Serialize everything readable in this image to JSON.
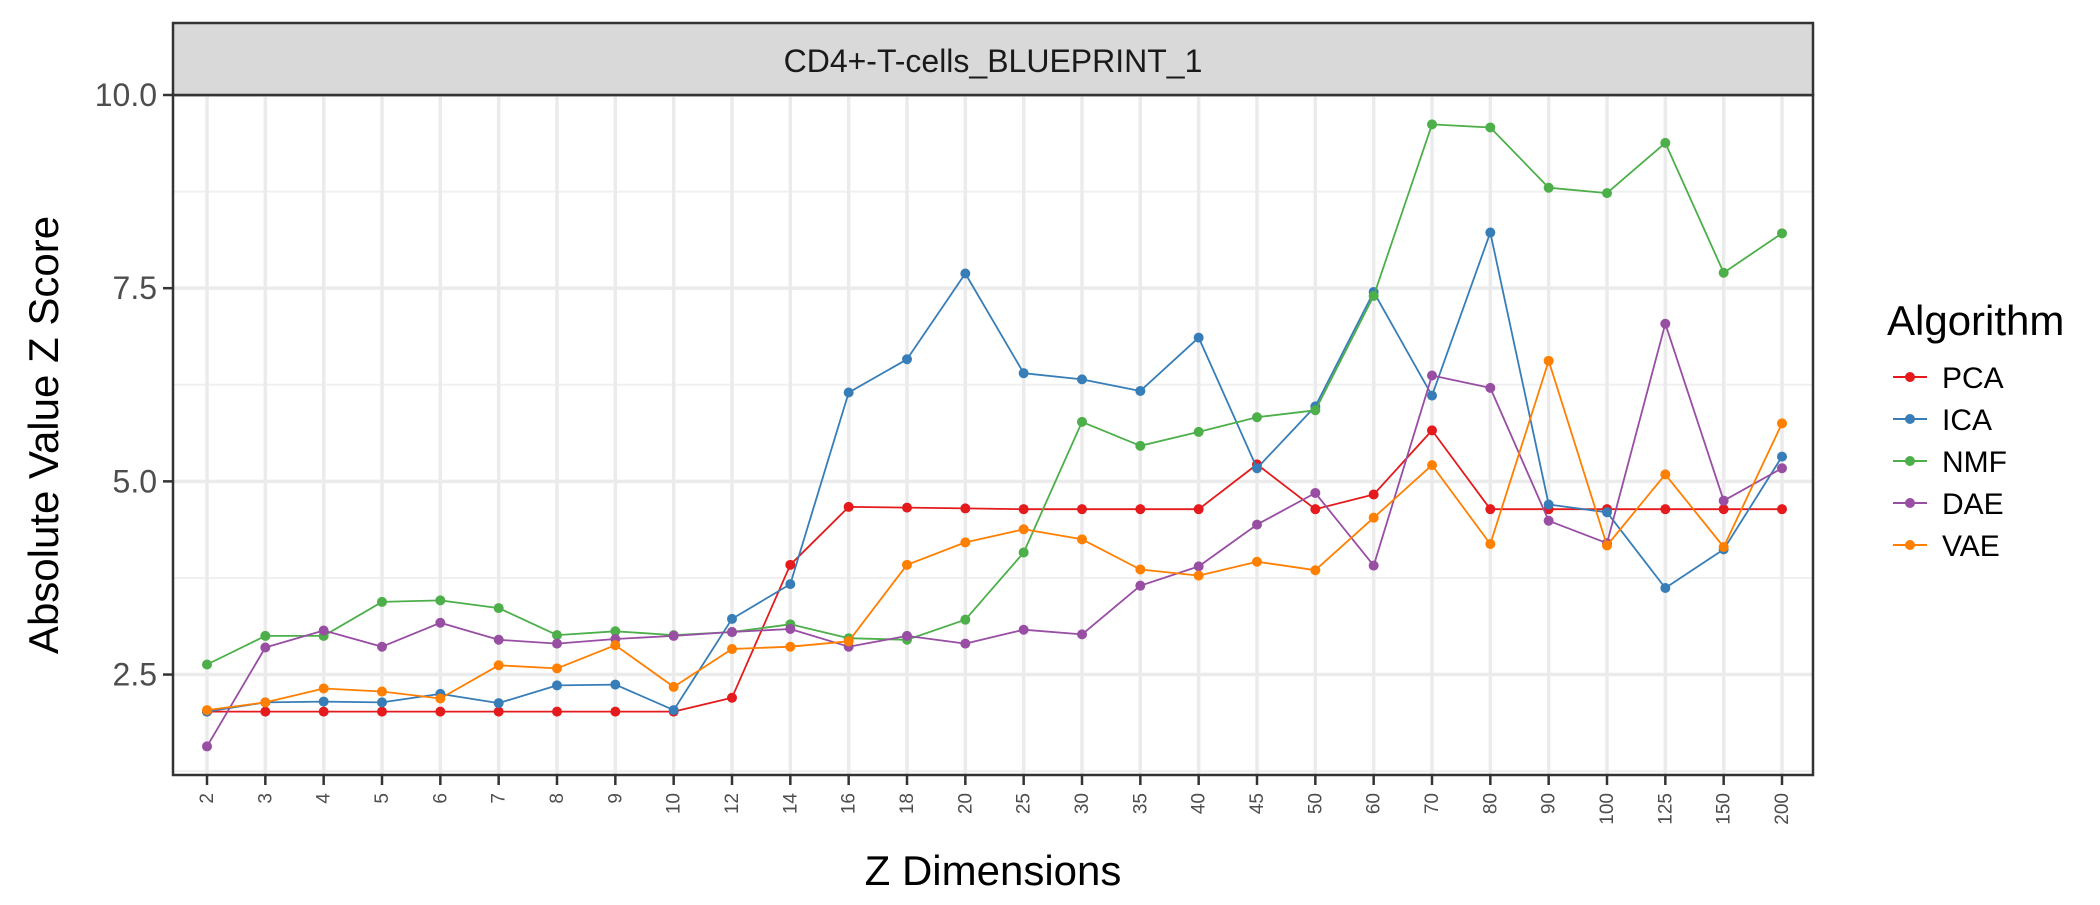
{
  "chart_data": {
    "type": "line",
    "title": "CD4+-T-cells_BLUEPRINT_1",
    "xlabel": "Z Dimensions",
    "ylabel": "Absolute Value Z Score",
    "categories": [
      "2",
      "3",
      "4",
      "5",
      "6",
      "7",
      "8",
      "9",
      "10",
      "12",
      "14",
      "16",
      "18",
      "20",
      "25",
      "30",
      "35",
      "40",
      "45",
      "50",
      "60",
      "70",
      "80",
      "90",
      "100",
      "125",
      "150",
      "200"
    ],
    "ylim": [
      1.2,
      10.0
    ],
    "yticks": [
      2.5,
      5.0,
      7.5,
      10.0
    ],
    "ytick_labels": [
      "2.5",
      "5.0",
      "7.5",
      "10.0"
    ],
    "grid": true,
    "legend": {
      "title": "Algorithm",
      "placement": "right"
    },
    "series": [
      {
        "name": "PCA",
        "color": "#e41a1c",
        "values": [
          2.02,
          2.02,
          2.02,
          2.02,
          2.02,
          2.02,
          2.02,
          2.02,
          2.02,
          2.2,
          3.92,
          4.67,
          4.66,
          4.65,
          4.64,
          4.64,
          4.64,
          4.64,
          5.22,
          4.64,
          4.83,
          5.66,
          4.64,
          4.64,
          4.64,
          4.64,
          4.64,
          4.64
        ]
      },
      {
        "name": "ICA",
        "color": "#377eb8",
        "values": [
          2.02,
          2.14,
          2.15,
          2.14,
          2.25,
          2.13,
          2.36,
          2.37,
          2.04,
          3.22,
          3.67,
          6.15,
          6.58,
          7.69,
          6.4,
          6.32,
          6.17,
          6.86,
          5.17,
          5.97,
          7.45,
          6.11,
          8.22,
          4.7,
          4.6,
          3.62,
          4.12,
          5.32
        ]
      },
      {
        "name": "NMF",
        "color": "#4daf4a",
        "values": [
          2.63,
          3.0,
          3.0,
          3.44,
          3.46,
          3.36,
          3.01,
          3.06,
          3.01,
          3.05,
          3.15,
          2.97,
          2.95,
          3.21,
          4.08,
          5.77,
          5.46,
          5.64,
          5.83,
          5.92,
          7.4,
          9.62,
          9.58,
          8.8,
          8.73,
          9.38,
          7.7,
          8.21
        ]
      },
      {
        "name": "DAE",
        "color": "#984ea3",
        "values": [
          1.57,
          2.85,
          3.07,
          2.86,
          3.17,
          2.95,
          2.9,
          2.96,
          3.0,
          3.05,
          3.09,
          2.86,
          3.0,
          2.9,
          3.08,
          3.02,
          3.65,
          3.9,
          4.44,
          4.85,
          3.91,
          6.37,
          6.21,
          4.49,
          4.2,
          7.04,
          4.75,
          5.17
        ]
      },
      {
        "name": "VAE",
        "color": "#ff7f00",
        "values": [
          2.04,
          2.14,
          2.32,
          2.28,
          2.19,
          2.62,
          2.58,
          2.88,
          2.34,
          2.83,
          2.86,
          2.93,
          3.92,
          4.21,
          4.38,
          4.25,
          3.86,
          3.78,
          3.96,
          3.85,
          4.53,
          5.21,
          4.19,
          6.56,
          4.17,
          5.09,
          4.15,
          5.75
        ]
      }
    ]
  }
}
